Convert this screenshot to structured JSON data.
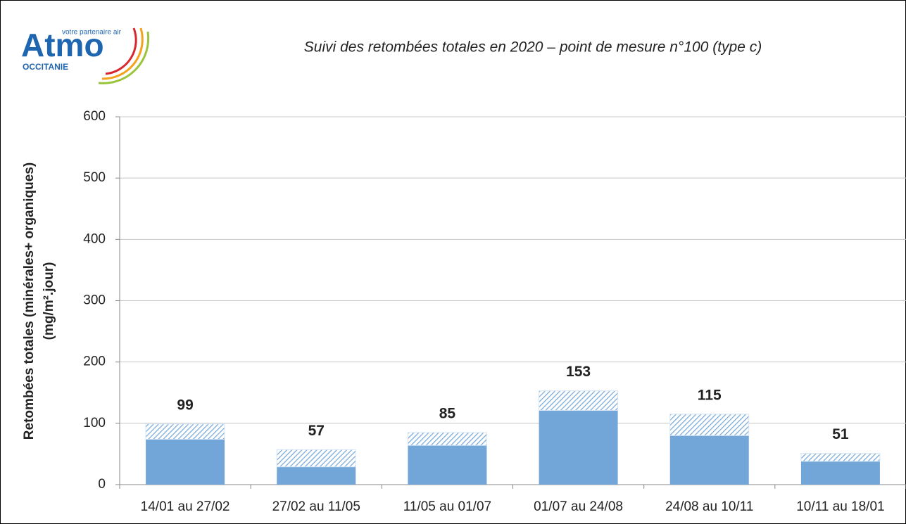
{
  "logo": {
    "brand": "Atmo",
    "tagline": "votre partenaire air",
    "region": "OCCITANIE"
  },
  "chart_data": {
    "type": "bar",
    "stacked": true,
    "title": "Suivi des retombées totales en 2020 – point de mesure n°100 (type c)",
    "y_label": [
      "Retombées totales (minérales+ organiques)",
      "(mg/m².jour)"
    ],
    "categories": [
      "14/01 au 27/02",
      "27/02 au 11/05",
      "11/05 au 01/07",
      "01/07 au 24/08",
      "24/08 au 10/11",
      "10/11 au 18/01"
    ],
    "series": [
      {
        "color": "#72a6d8",
        "pattern": "solid",
        "values": [
          74,
          29,
          64,
          121,
          80,
          38
        ]
      },
      {
        "color": "#72a6d8",
        "pattern": "hatch",
        "values": [
          25,
          28,
          21,
          32,
          35,
          13
        ]
      }
    ],
    "totals": [
      99,
      57,
      85,
      153,
      115,
      51
    ],
    "ylim": [
      0,
      600
    ],
    "yticks": [
      0,
      100,
      200,
      300,
      400,
      500,
      600
    ],
    "grid": true
  }
}
